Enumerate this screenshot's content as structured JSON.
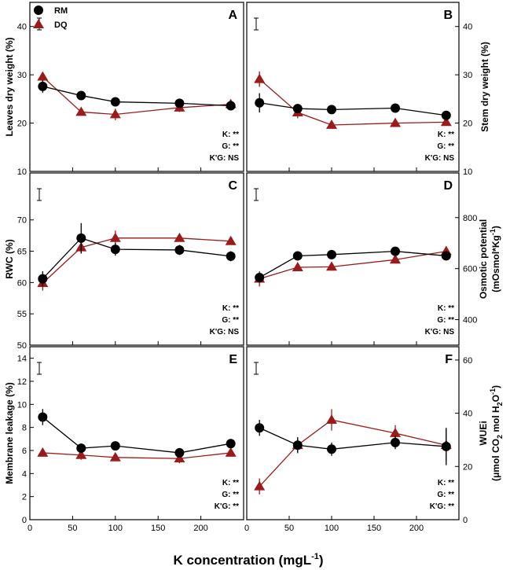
{
  "figure": {
    "xlabel": "K concentration (mgL",
    "xlabel_sup": "-1",
    "xlabel_end": ")",
    "legend": [
      {
        "name": "RM",
        "marker": "circle",
        "color": "#000000"
      },
      {
        "name": "DQ",
        "marker": "triangle",
        "color": "#9b1b1b"
      }
    ]
  },
  "chart_data": [
    {
      "type": "line",
      "panel": "A",
      "ylabel": "Leaves dry weight (%)",
      "xlim": [
        0,
        250
      ],
      "ylim": [
        10,
        45
      ],
      "yticks": [
        10,
        20,
        30,
        40
      ],
      "xticks": [
        0,
        50,
        100,
        150,
        200
      ],
      "x": [
        15,
        60,
        100,
        175,
        235
      ],
      "series": [
        {
          "name": "RM",
          "values": [
            27.6,
            25.7,
            24.4,
            24.1,
            23.6
          ],
          "err": [
            1.3,
            0.6,
            0.6,
            0.6,
            0.6
          ]
        },
        {
          "name": "DQ",
          "values": [
            29.6,
            22.3,
            21.8,
            23.2,
            23.9
          ],
          "err": [
            0.9,
            0.7,
            1.2,
            0.9,
            0.6
          ]
        }
      ],
      "stats": [
        "K: **",
        "G: **",
        "K'G: NS"
      ]
    },
    {
      "type": "line",
      "panel": "B",
      "ylabel": "Stem dry weight (%)",
      "xlim": [
        0,
        250
      ],
      "ylim": [
        10,
        45
      ],
      "yticks": [
        10,
        20,
        30,
        40
      ],
      "xticks": [
        0,
        50,
        100,
        150,
        200
      ],
      "x": [
        15,
        60,
        100,
        175,
        235
      ],
      "series": [
        {
          "name": "RM",
          "values": [
            24.2,
            23.0,
            22.8,
            23.1,
            21.6
          ],
          "err": [
            2.0,
            0.8,
            0.6,
            0.7,
            0.6
          ]
        },
        {
          "name": "DQ",
          "values": [
            29.1,
            22.2,
            19.6,
            20.0,
            20.2
          ],
          "err": [
            1.6,
            1.2,
            0.7,
            0.6,
            0.5
          ]
        }
      ],
      "stats": [
        "K: **",
        "G: **",
        "K'G: NS"
      ]
    },
    {
      "type": "line",
      "panel": "C",
      "ylabel": "RWC (%)",
      "xlim": [
        0,
        250
      ],
      "ylim": [
        50,
        77.5
      ],
      "yticks": [
        50,
        55,
        60,
        65,
        70
      ],
      "xticks": [
        0,
        50,
        100,
        150,
        200
      ],
      "x": [
        15,
        60,
        100,
        175,
        235
      ],
      "series": [
        {
          "name": "RM",
          "values": [
            60.6,
            67.1,
            65.3,
            65.2,
            64.2
          ],
          "err": [
            1.2,
            2.4,
            1.0,
            0.8,
            0.8
          ]
        },
        {
          "name": "DQ",
          "values": [
            59.9,
            65.6,
            67.1,
            67.1,
            66.6
          ],
          "err": [
            1.2,
            1.0,
            1.2,
            0.5,
            0.5
          ]
        }
      ],
      "stats": [
        "K: **",
        "G: **",
        "K'G: NS"
      ]
    },
    {
      "type": "line",
      "panel": "D",
      "ylabel": "Osmotic potential",
      "ylabel2": "(mOsmol*Kg",
      "ylabel2_sup": "-1",
      "ylabel2_end": ")",
      "xlim": [
        0,
        250
      ],
      "ylim": [
        300,
        975
      ],
      "yticks": [
        400,
        600,
        800
      ],
      "xticks": [
        0,
        50,
        100,
        150,
        200
      ],
      "x": [
        15,
        60,
        100,
        175,
        235
      ],
      "series": [
        {
          "name": "RM",
          "values": [
            565,
            650,
            655,
            668,
            650
          ],
          "err": [
            20,
            15,
            15,
            15,
            15
          ]
        },
        {
          "name": "DQ",
          "values": [
            560,
            605,
            607,
            635,
            668
          ],
          "err": [
            30,
            15,
            15,
            15,
            20
          ]
        }
      ],
      "stats": [
        "K: **",
        "G: **",
        "K'G: NS"
      ]
    },
    {
      "type": "line",
      "panel": "E",
      "ylabel": "Membrane leakage (%)",
      "xlim": [
        0,
        250
      ],
      "ylim": [
        0,
        15
      ],
      "yticks": [
        0,
        2,
        4,
        6,
        8,
        10,
        12,
        14
      ],
      "xticks": [
        0,
        50,
        100,
        150,
        200
      ],
      "x": [
        15,
        60,
        100,
        175,
        235
      ],
      "series": [
        {
          "name": "RM",
          "values": [
            8.9,
            6.2,
            6.4,
            5.8,
            6.6
          ],
          "err": [
            0.7,
            0.4,
            0.3,
            0.3,
            0.4
          ]
        },
        {
          "name": "DQ",
          "values": [
            5.8,
            5.6,
            5.4,
            5.3,
            5.8
          ],
          "err": [
            0.2,
            0.4,
            0.3,
            0.4,
            0.3
          ]
        }
      ],
      "stats": [
        "K: **",
        "G: **",
        "K'G: **"
      ]
    },
    {
      "type": "line",
      "panel": "F",
      "ylabel": "WUEi",
      "ylabel2": "(μmol CO",
      "ylabel2_sub": "2",
      "ylabel2_mid": " mol H",
      "ylabel2_sub2": "2",
      "ylabel2_mid2": "O",
      "ylabel2_sup": "-1",
      "ylabel2_end": ")",
      "xlim": [
        0,
        250
      ],
      "ylim": [
        0,
        65
      ],
      "yticks": [
        0,
        20,
        40,
        60
      ],
      "xticks": [
        0,
        50,
        100,
        150,
        200
      ],
      "x": [
        15,
        60,
        100,
        175,
        235
      ],
      "series": [
        {
          "name": "RM",
          "values": [
            34.5,
            28.0,
            26.5,
            29.0,
            27.5
          ],
          "err": [
            3.0,
            3.0,
            2.5,
            2.5,
            7.0
          ]
        },
        {
          "name": "DQ",
          "values": [
            12.5,
            28.0,
            37.5,
            32.5,
            28.0
          ],
          "err": [
            3.0,
            2.5,
            4.0,
            3.0,
            6.0
          ]
        }
      ],
      "stats": [
        "K: **",
        "G: **",
        "K'G: **"
      ]
    }
  ]
}
